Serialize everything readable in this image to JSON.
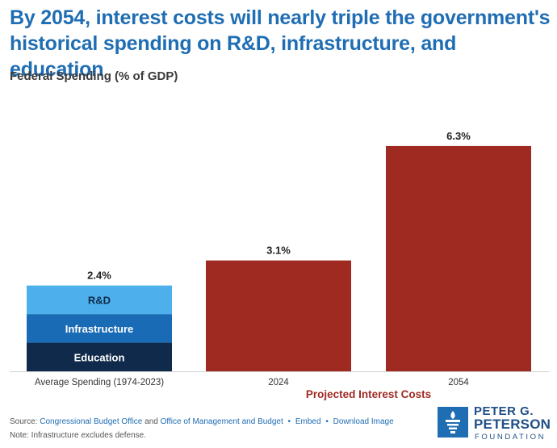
{
  "chart_data": {
    "type": "bar",
    "title": "By 2054, interest costs will nearly triple the government's historical spending on R&D, infrastructure, and education",
    "subtitle": "Federal Spending (% of GDP)",
    "categories": [
      "Average Spending (1974-2023)",
      "2024",
      "2054"
    ],
    "stacked_bar": {
      "category": "Average Spending (1974-2023)",
      "total_label": "2.4%",
      "total": 2.4,
      "segments": [
        {
          "name": "Education",
          "value": 0.8,
          "color": "#0f2a4a"
        },
        {
          "name": "Infrastructure",
          "value": 0.8,
          "color": "#1a6bb5"
        },
        {
          "name": "R&D",
          "value": 0.8,
          "color": "#4db0ec"
        }
      ]
    },
    "interest_bars": [
      {
        "category": "2024",
        "value": 3.1,
        "label": "3.1%"
      },
      {
        "category": "2054",
        "value": 6.3,
        "label": "6.3%"
      }
    ],
    "interest_color": "#9e2a22",
    "group_label": "Projected Interest Costs",
    "ylim": [
      0,
      7
    ],
    "grid": false,
    "legend": "none"
  },
  "footer": {
    "source_prefix": "Source:",
    "source_1": "Congressional Budget Office",
    "and": "and",
    "source_2": "Office of Management and Budget",
    "embed": "Embed",
    "download": "Download Image",
    "note": "Note: Infrastructure excludes defense."
  },
  "logo": {
    "line1": "PETER G.",
    "line2": "PETERSON",
    "line3": "FOUNDATION"
  }
}
